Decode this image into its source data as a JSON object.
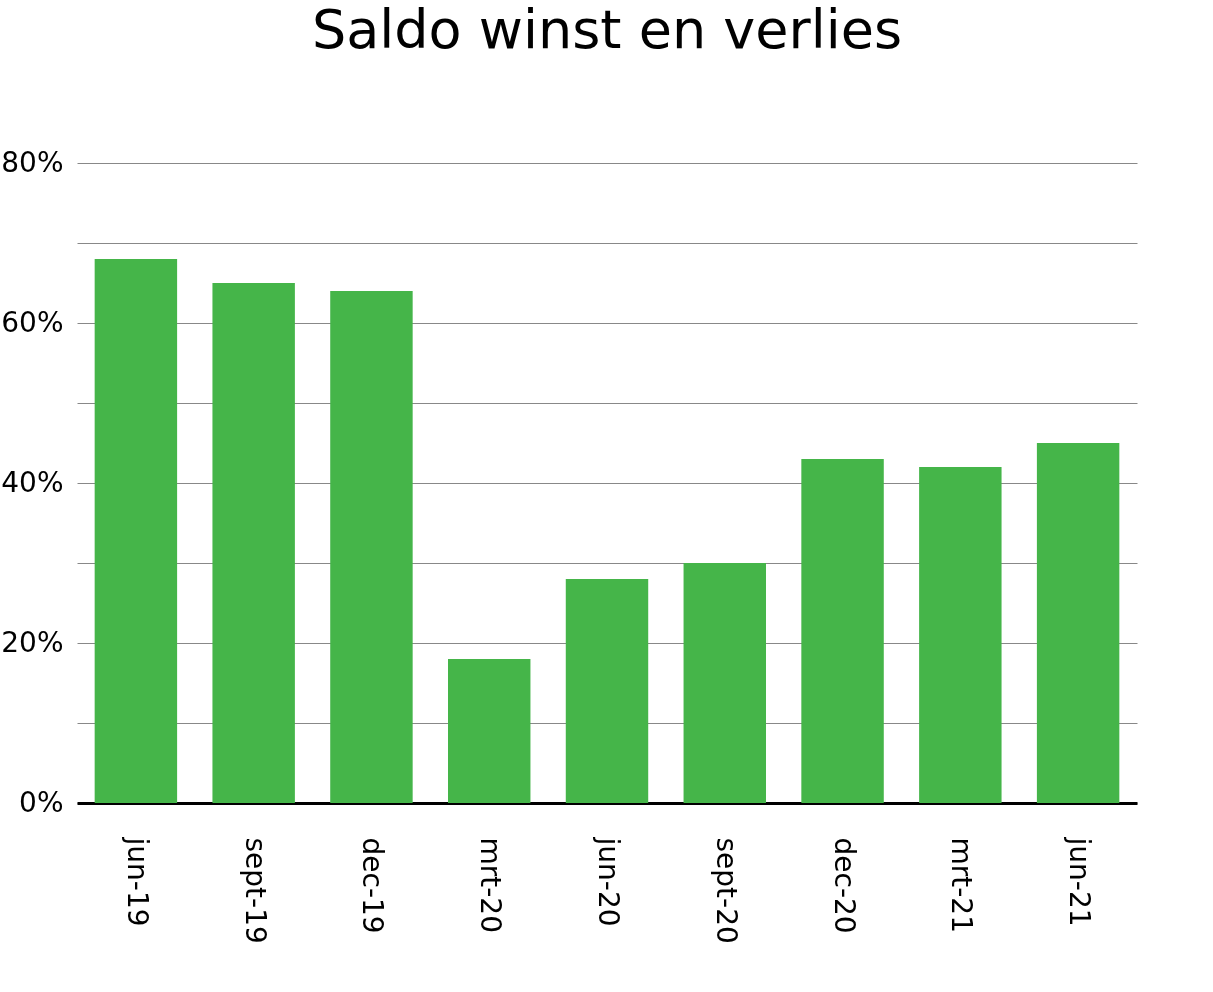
{
  "chart_data": {
    "type": "bar",
    "title": "Saldo winst en verlies",
    "categories": [
      "jun-19",
      "sept-19",
      "dec-19",
      "mrt-20",
      "jun-20",
      "sept-20",
      "dec-20",
      "mrt-21",
      "jun-21"
    ],
    "values": [
      68,
      65,
      64,
      18,
      28,
      30,
      43,
      42,
      45
    ],
    "color": "#45b549",
    "ylim": [
      0,
      80
    ],
    "yticks": [
      {
        "value": 0,
        "label": "0%"
      },
      {
        "value": 10,
        "label": null
      },
      {
        "value": 20,
        "label": "20%"
      },
      {
        "value": 30,
        "label": null
      },
      {
        "value": 40,
        "label": "40%"
      },
      {
        "value": 50,
        "label": null
      },
      {
        "value": 60,
        "label": "60%"
      },
      {
        "value": 70,
        "label": null
      },
      {
        "value": 80,
        "label": "80%"
      }
    ],
    "grid": true
  }
}
